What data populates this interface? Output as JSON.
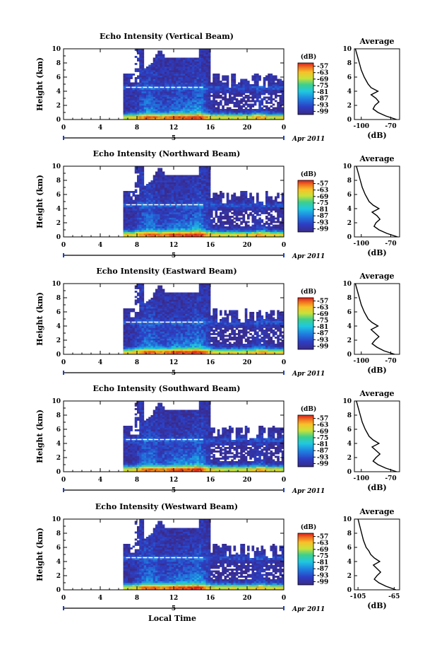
{
  "figure": {
    "xlabel": "Local Time",
    "date_label": "Apr 2011",
    "day_label": "5",
    "ylabel": "Height (km)",
    "colorbar_unit": "(dB)",
    "colorbar_ticks": [
      "-57",
      "-63",
      "-69",
      "-75",
      "-81",
      "-87",
      "-93",
      "-99"
    ],
    "profile_title": "Average",
    "profile_xlabel": "(dB)"
  },
  "chart_data": [
    {
      "type": "heatmap",
      "title": "Echo Intensity (Vertical Beam)",
      "xlabel": "Local Time",
      "ylabel": "Height (km)",
      "xlim": [
        0,
        24
      ],
      "ylim": [
        0,
        10
      ],
      "xticks": [
        "0",
        "4",
        "8",
        "12",
        "16",
        "20",
        "0"
      ],
      "yticks": [
        "0",
        "2",
        "4",
        "6",
        "8",
        "10"
      ],
      "colorbar": {
        "label": "(dB)",
        "ticks": [
          -57,
          -63,
          -69,
          -75,
          -81,
          -87,
          -93,
          -99
        ]
      },
      "profile": {
        "title": "Average",
        "xlabel": "(dB)",
        "xlim": [
          -107,
          -61
        ],
        "xticks": [
          "-100",
          "-70"
        ],
        "heights": [
          0,
          0.5,
          1,
          1.5,
          2,
          2.5,
          3,
          3.5,
          4,
          4.5,
          5,
          5.5,
          6,
          7,
          8,
          9,
          10
        ],
        "values": [
          -64,
          -75,
          -83,
          -88,
          -86,
          -82,
          -85,
          -90,
          -83,
          -90,
          -93,
          -95,
          -97,
          -100,
          -102,
          -104,
          -106
        ]
      }
    },
    {
      "type": "heatmap",
      "title": "Echo Intensity (Northward Beam)",
      "xlabel": "Local Time",
      "ylabel": "Height (km)",
      "xlim": [
        0,
        24
      ],
      "ylim": [
        0,
        10
      ],
      "xticks": [
        "0",
        "4",
        "8",
        "12",
        "16",
        "20",
        "0"
      ],
      "yticks": [
        "0",
        "2",
        "4",
        "6",
        "8",
        "10"
      ],
      "colorbar": {
        "label": "(dB)",
        "ticks": [
          -57,
          -63,
          -69,
          -75,
          -81,
          -87,
          -93,
          -99
        ]
      },
      "profile": {
        "title": "Average",
        "xlabel": "(dB)",
        "xlim": [
          -107,
          -61
        ],
        "xticks": [
          "-100",
          "-70"
        ],
        "heights": [
          0,
          0.5,
          1,
          1.5,
          2,
          2.5,
          3,
          3.5,
          4,
          4.5,
          5,
          5.5,
          6,
          7,
          8,
          9,
          10
        ],
        "values": [
          -63,
          -74,
          -82,
          -87,
          -85,
          -81,
          -84,
          -89,
          -82,
          -88,
          -92,
          -94,
          -96,
          -99,
          -101,
          -103,
          -105
        ]
      }
    },
    {
      "type": "heatmap",
      "title": "Echo Intensity (Eastward Beam)",
      "xlabel": "Local Time",
      "ylabel": "Height (km)",
      "xlim": [
        0,
        24
      ],
      "ylim": [
        0,
        10
      ],
      "xticks": [
        "0",
        "4",
        "8",
        "12",
        "16",
        "20",
        "0"
      ],
      "yticks": [
        "0",
        "2",
        "4",
        "6",
        "8",
        "10"
      ],
      "colorbar": {
        "label": "(dB)",
        "ticks": [
          -57,
          -63,
          -69,
          -75,
          -81,
          -87,
          -93,
          -99
        ]
      },
      "profile": {
        "title": "Average",
        "xlabel": "(dB)",
        "xlim": [
          -107,
          -61
        ],
        "xticks": [
          "-100",
          "-70"
        ],
        "heights": [
          0,
          0.5,
          1,
          1.5,
          2,
          2.5,
          3,
          3.5,
          4,
          4.5,
          5,
          5.5,
          6,
          7,
          8,
          9,
          10
        ],
        "values": [
          -66,
          -77,
          -84,
          -89,
          -86,
          -82,
          -86,
          -90,
          -83,
          -89,
          -93,
          -95,
          -97,
          -100,
          -102,
          -104,
          -106
        ]
      }
    },
    {
      "type": "heatmap",
      "title": "Echo Intensity (Southward Beam)",
      "xlabel": "Local Time",
      "ylabel": "Height (km)",
      "xlim": [
        0,
        24
      ],
      "ylim": [
        0,
        10
      ],
      "xticks": [
        "0",
        "4",
        "8",
        "12",
        "16",
        "20",
        "0"
      ],
      "yticks": [
        "0",
        "2",
        "4",
        "6",
        "8",
        "10"
      ],
      "colorbar": {
        "label": "(dB)",
        "ticks": [
          -57,
          -63,
          -69,
          -75,
          -81,
          -87,
          -93,
          -99
        ]
      },
      "profile": {
        "title": "Average",
        "xlabel": "(dB)",
        "xlim": [
          -107,
          -61
        ],
        "xticks": [
          "-100",
          "-70"
        ],
        "heights": [
          0,
          0.5,
          1,
          1.5,
          2,
          2.5,
          3,
          3.5,
          4,
          4.5,
          5,
          5.5,
          6,
          7,
          8,
          9,
          10
        ],
        "values": [
          -64,
          -75,
          -83,
          -88,
          -85,
          -81,
          -85,
          -89,
          -82,
          -88,
          -92,
          -94,
          -96,
          -99,
          -101,
          -103,
          -105
        ]
      }
    },
    {
      "type": "heatmap",
      "title": "Echo Intensity (Westward Beam)",
      "xlabel": "Local Time",
      "ylabel": "Height (km)",
      "xlim": [
        0,
        24
      ],
      "ylim": [
        0,
        10
      ],
      "xticks": [
        "0",
        "4",
        "8",
        "12",
        "16",
        "20",
        "0"
      ],
      "yticks": [
        "0",
        "2",
        "4",
        "6",
        "8",
        "10"
      ],
      "colorbar": {
        "label": "(dB)",
        "ticks": [
          -57,
          -63,
          -69,
          -75,
          -81,
          -87,
          -93,
          -99
        ]
      },
      "profile": {
        "title": "Average",
        "xlabel": "(dB)",
        "xlim": [
          -109,
          -59
        ],
        "xticks": [
          "-105",
          "-65"
        ],
        "heights": [
          0,
          0.5,
          1,
          1.5,
          2,
          2.5,
          3,
          3.5,
          4,
          4.5,
          5,
          5.5,
          6,
          7,
          8,
          9,
          10
        ],
        "values": [
          -63,
          -74,
          -82,
          -87,
          -84,
          -80,
          -84,
          -88,
          -81,
          -87,
          -91,
          -93,
          -96,
          -99,
          -101,
          -103,
          -105
        ]
      }
    }
  ]
}
